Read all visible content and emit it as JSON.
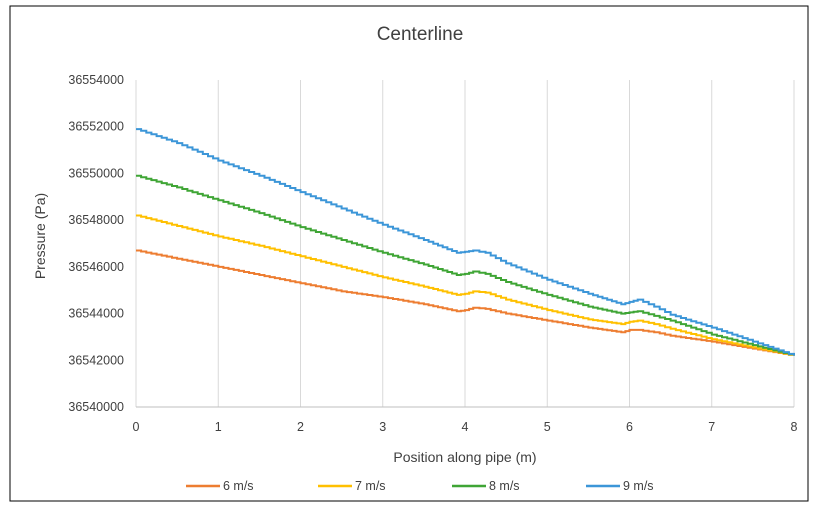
{
  "chart_data": {
    "type": "line",
    "title": "Centerline",
    "xlabel": "Position along pipe (m)",
    "ylabel": "Pressure (Pa)",
    "xlim": [
      0,
      8
    ],
    "ylim": [
      36540000,
      36554000
    ],
    "xticks": [
      "0",
      "1",
      "2",
      "3",
      "4",
      "5",
      "6",
      "7",
      "8"
    ],
    "yticks": [
      "36540000",
      "36542000",
      "36544000",
      "36546000",
      "36548000",
      "36550000",
      "36552000",
      "36554000"
    ],
    "grid": "vertical",
    "legend_position": "bottom",
    "series": [
      {
        "name": "6 m/s",
        "color": "#ED7D31",
        "x": [
          0,
          0.5,
          1,
          1.5,
          2,
          2.5,
          3,
          3.5,
          3.9,
          4.0,
          4.1,
          4.25,
          4.5,
          5,
          5.5,
          5.9,
          6.0,
          6.1,
          6.3,
          6.5,
          7,
          7.5,
          8
        ],
        "y": [
          36546700,
          36546350,
          36546000,
          36545650,
          36545300,
          36544950,
          36544700,
          36544400,
          36544100,
          36544150,
          36544250,
          36544200,
          36544000,
          36543700,
          36543400,
          36543200,
          36543300,
          36543300,
          36543200,
          36543050,
          36542800,
          36542500,
          36542200
        ]
      },
      {
        "name": "7 m/s",
        "color": "#FFC000",
        "x": [
          0,
          0.5,
          1,
          1.5,
          2,
          2.5,
          3,
          3.5,
          3.9,
          4.0,
          4.1,
          4.25,
          4.5,
          5,
          5.5,
          5.9,
          6.0,
          6.1,
          6.3,
          6.5,
          7,
          7.5,
          8
        ],
        "y": [
          36548200,
          36547750,
          36547300,
          36546900,
          36546450,
          36546000,
          36545550,
          36545150,
          36544800,
          36544850,
          36544950,
          36544900,
          36544600,
          36544150,
          36543750,
          36543550,
          36543650,
          36543700,
          36543550,
          36543350,
          36542900,
          36542550,
          36542200
        ]
      },
      {
        "name": "8 m/s",
        "color": "#3FA535",
        "x": [
          0,
          0.5,
          1,
          1.5,
          2,
          2.5,
          3,
          3.5,
          3.9,
          4.0,
          4.1,
          4.25,
          4.5,
          5,
          5.5,
          5.9,
          6.0,
          6.1,
          6.3,
          6.5,
          7,
          7.5,
          8
        ],
        "y": [
          36549900,
          36549400,
          36548850,
          36548300,
          36547700,
          36547150,
          36546600,
          36546100,
          36545650,
          36545700,
          36545800,
          36545700,
          36545350,
          36544800,
          36544300,
          36544000,
          36544050,
          36544100,
          36543900,
          36543700,
          36543100,
          36542650,
          36542200
        ]
      },
      {
        "name": "9 m/s",
        "color": "#3C96D8",
        "x": [
          0,
          0.5,
          1,
          1.5,
          2,
          2.5,
          3,
          3.5,
          3.9,
          4.0,
          4.1,
          4.25,
          4.5,
          5,
          5.5,
          5.9,
          6.0,
          6.1,
          6.3,
          6.5,
          7,
          7.5,
          8
        ],
        "y": [
          36551900,
          36551300,
          36550550,
          36549900,
          36549200,
          36548500,
          36547800,
          36547150,
          36546600,
          36546650,
          36546700,
          36546600,
          36546150,
          36545450,
          36544850,
          36544400,
          36544500,
          36544600,
          36544300,
          36543950,
          36543400,
          36542800,
          36542200
        ]
      }
    ]
  }
}
